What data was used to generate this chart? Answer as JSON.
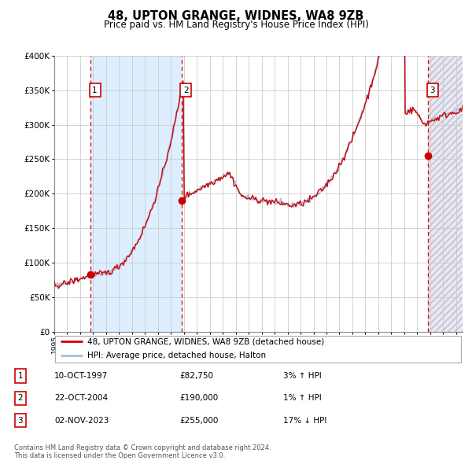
{
  "title": "48, UPTON GRANGE, WIDNES, WA8 9ZB",
  "subtitle": "Price paid vs. HM Land Registry's House Price Index (HPI)",
  "ylim": [
    0,
    400000
  ],
  "yticks": [
    0,
    50000,
    100000,
    150000,
    200000,
    250000,
    300000,
    350000,
    400000
  ],
  "ytick_labels": [
    "£0",
    "£50K",
    "£100K",
    "£150K",
    "£200K",
    "£250K",
    "£300K",
    "£350K",
    "£400K"
  ],
  "xlim_start": 1995.0,
  "xlim_end": 2026.5,
  "sale_dates": [
    1997.78,
    2004.81,
    2023.84
  ],
  "sale_prices": [
    82750,
    190000,
    255000
  ],
  "sale_labels": [
    "1",
    "2",
    "3"
  ],
  "vline_color": "#dd0000",
  "hpi_line_color": "#aabbdd",
  "price_line_color": "#cc0000",
  "dot_color": "#cc0000",
  "legend_line1": "48, UPTON GRANGE, WIDNES, WA8 9ZB (detached house)",
  "legend_line2": "HPI: Average price, detached house, Halton",
  "table_entries": [
    {
      "num": "1",
      "date": "10-OCT-1997",
      "price": "£82,750",
      "hpi": "3% ↑ HPI"
    },
    {
      "num": "2",
      "date": "22-OCT-2004",
      "price": "£190,000",
      "hpi": "1% ↑ HPI"
    },
    {
      "num": "3",
      "date": "02-NOV-2023",
      "price": "£255,000",
      "hpi": "17% ↓ HPI"
    }
  ],
  "footer": "Contains HM Land Registry data © Crown copyright and database right 2024.\nThis data is licensed under the Open Government Licence v3.0.",
  "shade_color": "#ddeeff",
  "background_color": "#ffffff",
  "grid_color": "#cccccc"
}
